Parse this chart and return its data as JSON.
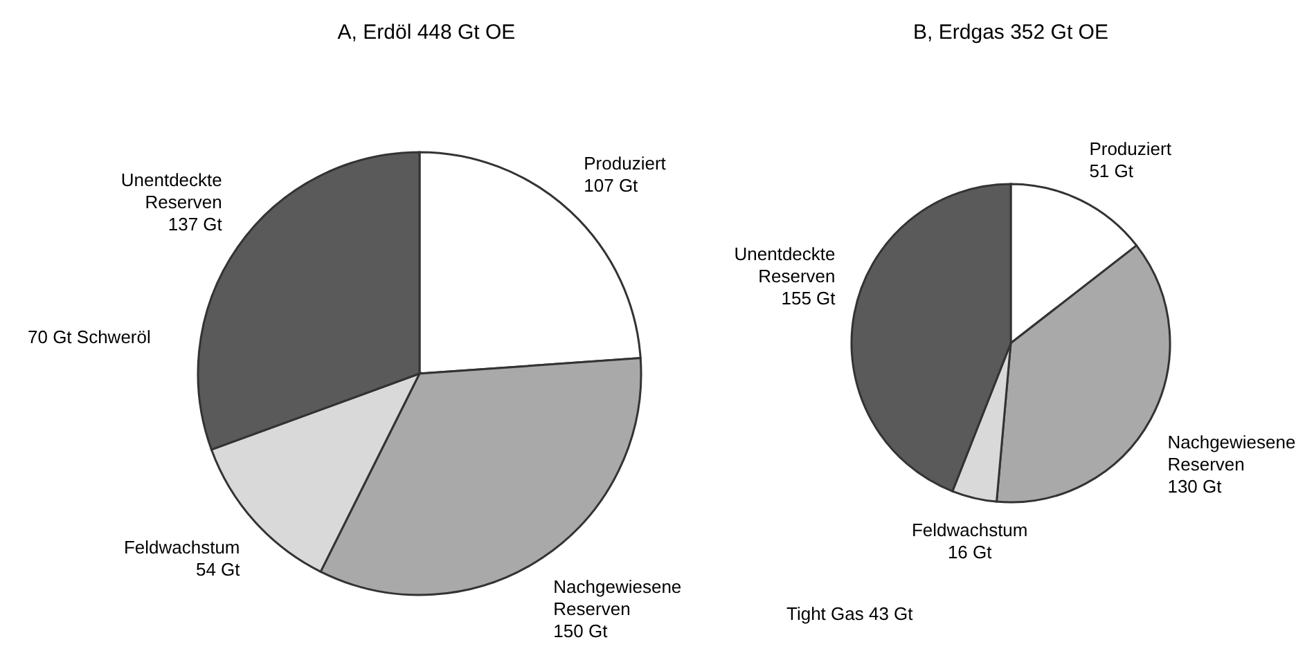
{
  "chart_data": [
    {
      "type": "pie",
      "title": "A, Erdöl 448 Gt OE",
      "categories": [
        "Produziert",
        "Nachgewiesene Reserven",
        "Feldwachstum",
        "Unentdeckte Reserven"
      ],
      "values": [
        107,
        150,
        54,
        137
      ],
      "value_labels": [
        "107 Gt",
        "150 Gt",
        "54 Gt",
        "137 Gt"
      ],
      "colors": [
        "#ffffff",
        "#a9a9a9",
        "#d9d9d9",
        "#5a5a5a"
      ],
      "annotations": [
        "70 Gt Schweröl"
      ]
    },
    {
      "type": "pie",
      "title": "B, Erdgas 352 Gt OE",
      "categories": [
        "Produziert",
        "Nachgewiesene Reserven",
        "Feldwachstum",
        "Unentdeckte Reserven"
      ],
      "values": [
        51,
        130,
        16,
        155
      ],
      "value_labels": [
        "51 Gt",
        "130 Gt",
        "16 Gt",
        "155 Gt"
      ],
      "colors": [
        "#ffffff",
        "#a9a9a9",
        "#d9d9d9",
        "#5a5a5a"
      ],
      "annotations": [
        "Tight Gas 43 Gt"
      ]
    }
  ]
}
